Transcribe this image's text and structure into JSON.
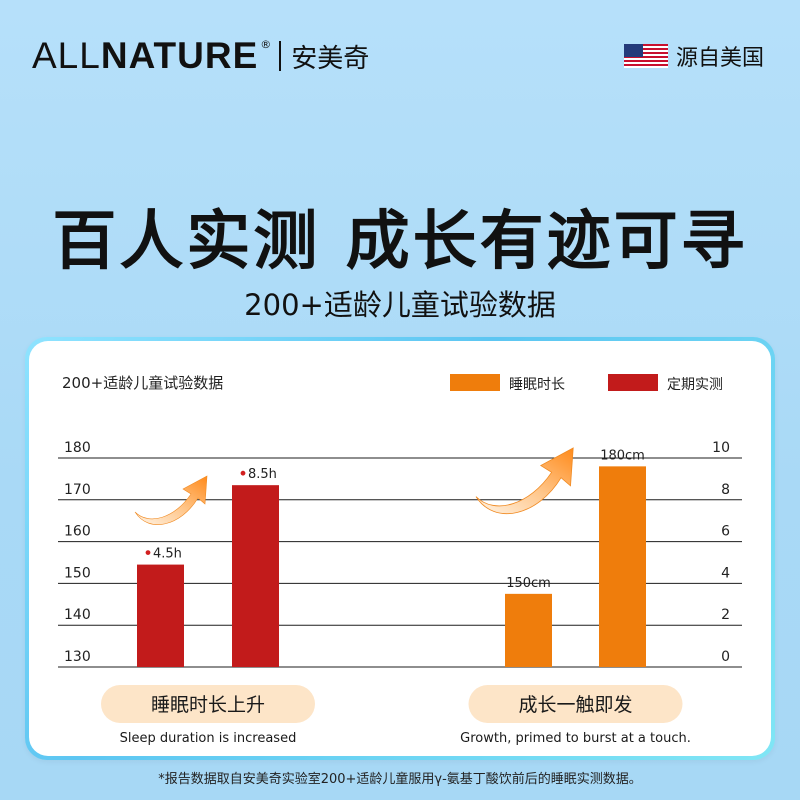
{
  "brand": {
    "name_light": "ALL",
    "name_bold": "NATURE",
    "reg": "®",
    "name_cn": "安美奇"
  },
  "origin": {
    "flag_icon": "us-flag-icon",
    "label": "源自美国"
  },
  "headline": "百人实测  成长有迹可寻",
  "subhead": "200+适龄儿童试验数据",
  "footnote": "*报告数据取自安美奇实验室200+适龄儿童服用γ-氨基丁酸饮前后的睡眠实测数据。",
  "colors": {
    "orange": "#ef7d0c",
    "red": "#c21b1b",
    "pill_bg": "#fde5c8"
  },
  "chart_data": {
    "type": "bar",
    "title": "200+适龄儿童试验数据",
    "legend": [
      {
        "name": "睡眠时长",
        "color": "#ef7d0c"
      },
      {
        "name": "定期实测",
        "color": "#c21b1b"
      }
    ],
    "legend_position": "top-right",
    "grid": true,
    "left_axis": {
      "ticks": [
        "180",
        "170",
        "160",
        "150",
        "140",
        "130"
      ],
      "range": [
        130,
        180
      ]
    },
    "right_axis": {
      "ticks": [
        "10",
        "8",
        "6",
        "4",
        "2",
        "0"
      ],
      "range": [
        0,
        10
      ]
    },
    "groups": [
      {
        "label": "睡眠时长上升",
        "caption": "Sleep duration is increased",
        "axis": "left",
        "bars": [
          {
            "value": 154.5,
            "label": "4.5h",
            "color": "#c21b1b"
          },
          {
            "value": 173.5,
            "label": "8.5h",
            "color": "#c21b1b"
          }
        ]
      },
      {
        "label": "成长一触即发",
        "caption": "Growth, primed to burst at a touch.",
        "axis": "right",
        "bars": [
          {
            "value": 3.5,
            "label": "150cm",
            "color": "#ef7d0c"
          },
          {
            "value": 9.6,
            "label": "180cm",
            "color": "#ef7d0c"
          }
        ]
      }
    ]
  }
}
